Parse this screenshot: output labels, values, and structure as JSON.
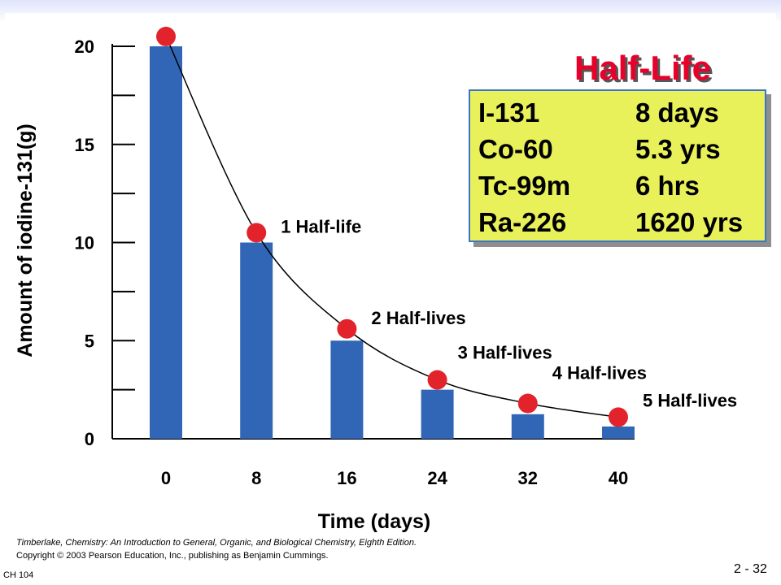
{
  "chart_data": {
    "type": "bar",
    "categories": [
      "0",
      "8",
      "16",
      "24",
      "32",
      "40"
    ],
    "values": [
      20,
      10,
      5,
      2.5,
      1.25,
      0.625
    ],
    "points": [
      20.5,
      10.5,
      5.6,
      3.0,
      1.8,
      1.1
    ],
    "point_labels": [
      "",
      "1 Half-life",
      "2 Half-lives",
      "3 Half-lives",
      "4 Half-lives",
      "5 Half-lives"
    ],
    "xlabel": "Time (days)",
    "ylabel": "Amount of iodine-131(g)",
    "ylim": [
      0,
      20
    ],
    "yticks": [
      "0",
      "5",
      "10",
      "15",
      "20"
    ],
    "colors": {
      "bar": "#3166b6",
      "point": "#e2232b",
      "curve": "#000000"
    }
  },
  "title": "Half-Life",
  "half_life_table": [
    {
      "isotope": "I-131",
      "value": "8 days"
    },
    {
      "isotope": "Co-60",
      "value": "5.3 yrs"
    },
    {
      "isotope": "Tc-99m",
      "value": "6 hrs"
    },
    {
      "isotope": "Ra-226",
      "value": "1620 yrs"
    }
  ],
  "credits": [
    "Timberlake, Chemistry: An Introduction to General, Organic, and Biological Chemistry, Eighth Edition.",
    "Copyright © 2003 Pearson Education, Inc., publishing as Benjamin Cummings."
  ],
  "footer": {
    "course": "CH 104",
    "page": "2 - 32"
  }
}
